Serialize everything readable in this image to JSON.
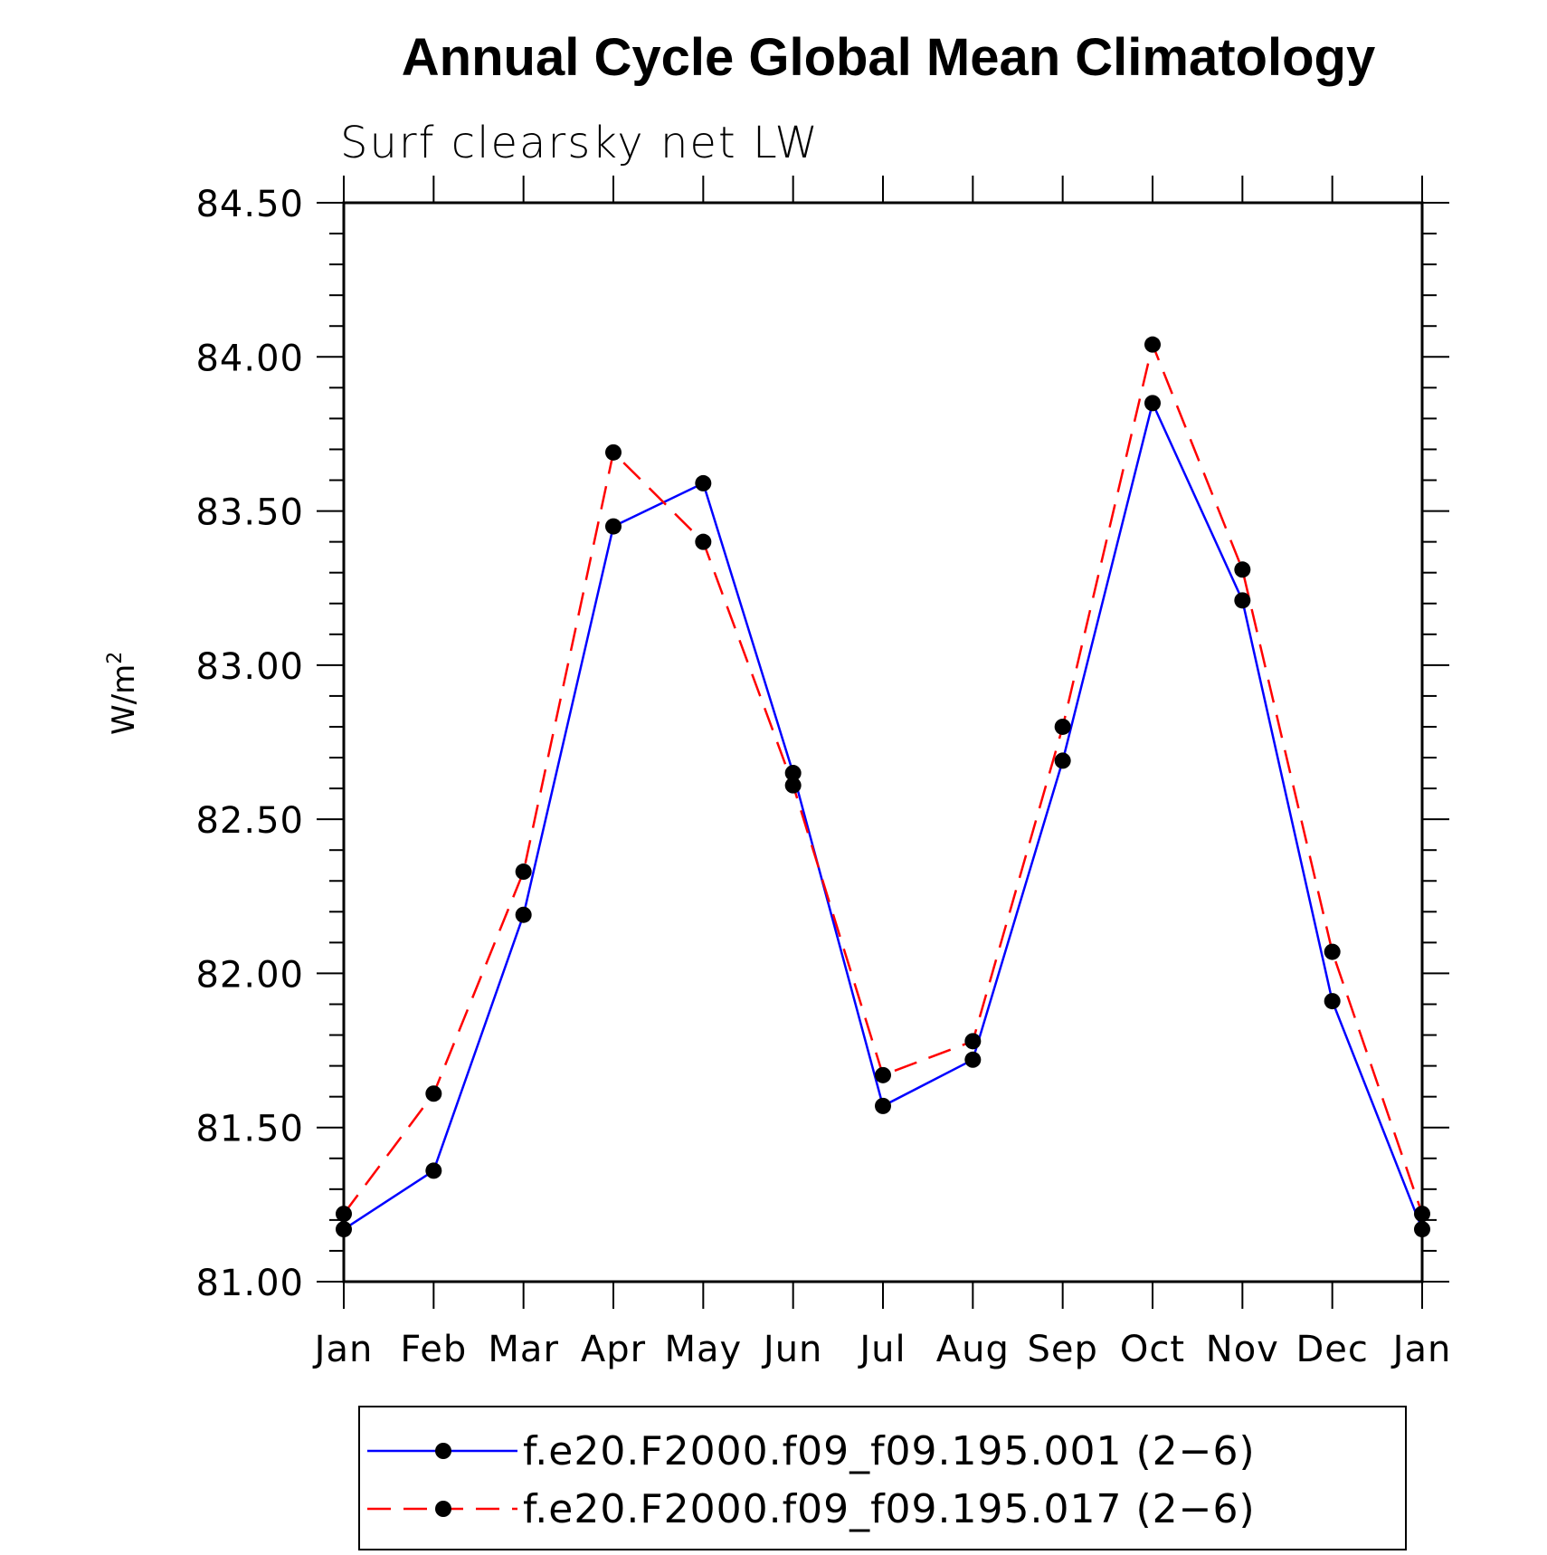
{
  "chart_data": {
    "type": "line",
    "title": "Annual Cycle Global Mean Climatology",
    "subtitle": "Surf clearsky net LW",
    "ylabel": "W/m",
    "ylabel_superscript": "2",
    "xlabel": "",
    "categories": [
      "Jan",
      "Feb",
      "Mar",
      "Apr",
      "May",
      "Jun",
      "Jul",
      "Aug",
      "Sep",
      "Oct",
      "Nov",
      "Dec",
      "Jan"
    ],
    "ylim": [
      81.0,
      84.5
    ],
    "yticks": [
      "81.00",
      "81.50",
      "82.00",
      "82.50",
      "83.00",
      "83.50",
      "84.00",
      "84.50"
    ],
    "series": [
      {
        "name": "f.e20.F2000.f09_f09.195.001 (2−6)",
        "color": "#0000ff",
        "dash": "solid",
        "values": [
          81.17,
          81.36,
          82.19,
          83.45,
          83.59,
          82.65,
          81.57,
          81.72,
          82.69,
          83.85,
          83.21,
          81.91,
          81.17
        ]
      },
      {
        "name": "f.e20.F2000.f09_f09.195.017 (2−6)",
        "color": "#ff0000",
        "dash": "dashed",
        "values": [
          81.22,
          81.61,
          82.33,
          83.69,
          83.4,
          82.61,
          81.67,
          81.78,
          82.8,
          84.04,
          83.31,
          82.07,
          81.22
        ]
      }
    ],
    "marker": "filled-circle",
    "marker_color": "#000000",
    "legend_position": "bottom",
    "grid": false
  }
}
